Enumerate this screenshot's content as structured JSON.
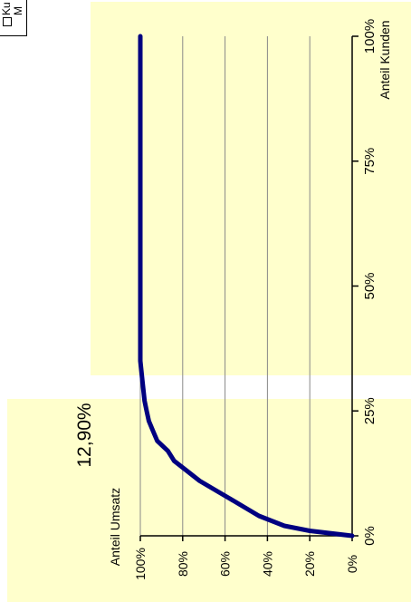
{
  "legend": {
    "items": [
      "Ku",
      "M"
    ]
  },
  "annotation": "12,90%",
  "chart_data": {
    "type": "line",
    "orientation": "rotated-90-ccw",
    "xlabel": "Anteil Kunden",
    "ylabel": "Anteil Umsatz",
    "xlim": [
      0,
      100
    ],
    "ylim": [
      0,
      100
    ],
    "x_ticks": [
      "0%",
      "25%",
      "50%",
      "75%",
      "100%"
    ],
    "y_ticks": [
      "0%",
      "20%",
      "40%",
      "60%",
      "80%",
      "100%"
    ],
    "grid": true,
    "line_color": "#000080",
    "background_color": "#ffffcc",
    "series": [
      {
        "x": [
          0,
          1,
          2,
          4,
          7,
          9,
          11,
          13,
          15,
          17,
          19,
          21,
          23,
          25,
          27,
          31,
          35,
          40,
          50,
          60,
          70,
          80,
          90,
          100
        ],
        "y": [
          0,
          20,
          32,
          44,
          56,
          64,
          72,
          78,
          84,
          87,
          92,
          94,
          96,
          97,
          98,
          99,
          100,
          100,
          100,
          100,
          100,
          100,
          100,
          100
        ]
      }
    ]
  }
}
